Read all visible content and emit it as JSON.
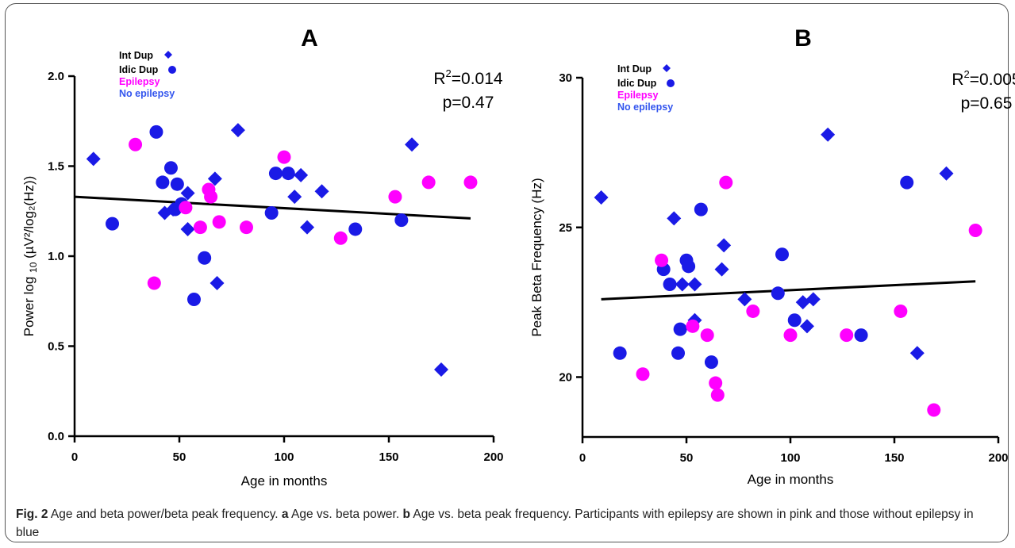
{
  "colors": {
    "int_dup_blue": "#1a1ae6",
    "idic_dup_blue": "#1a1ae6",
    "epilepsy_pink": "#ff00ff",
    "no_epilepsy_blue": "#3355ee",
    "regression_line": "#000000"
  },
  "legend": {
    "int_dup": "Int Dup",
    "idic_dup": "Idic Dup",
    "epilepsy": "Epilepsy",
    "no_epilepsy": "No epilepsy"
  },
  "chart_data": [
    {
      "type": "scatter",
      "panel_label": "A",
      "xlabel": "Age in months",
      "ylabel_main": "Power log",
      "ylabel_sub": "10",
      "ylabel_units": "(µV²/log₂(Hz))",
      "xlim": [
        0,
        200
      ],
      "ylim": [
        0,
        2.0
      ],
      "xticks": [
        "0",
        "50",
        "100",
        "150",
        "200"
      ],
      "yticks": [
        "0.0",
        "0.5",
        "1.0",
        "1.5",
        "2.0"
      ],
      "stats": {
        "r2_label": "R",
        "r2_sup": "2",
        "r2_value": "=0.014",
        "p": "p=0.47"
      },
      "regression": {
        "x": [
          0,
          189
        ],
        "y": [
          1.33,
          1.21
        ]
      },
      "legend_position": "top-left",
      "series": [
        {
          "name": "Int Dup",
          "marker": "diamond",
          "points": [
            [
              9,
              1.54
            ],
            [
              43,
              1.24
            ],
            [
              54,
              1.35
            ],
            [
              54,
              1.15
            ],
            [
              67,
              1.43
            ],
            [
              68,
              0.85
            ],
            [
              78,
              1.7
            ],
            [
              105,
              1.33
            ],
            [
              108,
              1.45
            ],
            [
              111,
              1.16
            ],
            [
              118,
              1.36
            ],
            [
              161,
              1.62
            ],
            [
              175,
              0.37
            ],
            [
              47,
              1.26
            ]
          ]
        },
        {
          "name": "Idic Dup",
          "marker": "circle",
          "points": [
            [
              18,
              1.18
            ],
            [
              39,
              1.69
            ],
            [
              42,
              1.41
            ],
            [
              46,
              1.49
            ],
            [
              48,
              1.26
            ],
            [
              49,
              1.4
            ],
            [
              51,
              1.29
            ],
            [
              62,
              0.99
            ],
            [
              57,
              0.76
            ],
            [
              94,
              1.24
            ],
            [
              96,
              1.46
            ],
            [
              102,
              1.46
            ],
            [
              134,
              1.15
            ],
            [
              156,
              1.2
            ]
          ]
        },
        {
          "name": "Epilepsy",
          "marker": "circle",
          "points": [
            [
              29,
              1.62
            ],
            [
              38,
              0.85
            ],
            [
              53,
              1.27
            ],
            [
              60,
              1.16
            ],
            [
              64,
              1.37
            ],
            [
              65,
              1.33
            ],
            [
              69,
              1.19
            ],
            [
              82,
              1.16
            ],
            [
              100,
              1.55
            ],
            [
              127,
              1.1
            ],
            [
              153,
              1.33
            ],
            [
              169,
              1.41
            ],
            [
              189,
              1.41
            ]
          ]
        }
      ]
    },
    {
      "type": "scatter",
      "panel_label": "B",
      "xlabel": "Age in months",
      "ylabel": "Peak Beta Frequency (Hz)",
      "xlim": [
        0,
        200
      ],
      "ylim": [
        18,
        30
      ],
      "xticks": [
        "0",
        "50",
        "100",
        "150",
        "200"
      ],
      "yticks": [
        "20",
        "25",
        "30"
      ],
      "stats": {
        "r2_label": "R",
        "r2_sup": "2",
        "r2_value": "=0.005",
        "p": "p=0.65"
      },
      "regression": {
        "x": [
          9,
          189
        ],
        "y": [
          22.6,
          23.2
        ]
      },
      "legend_position": "top-left",
      "series": [
        {
          "name": "Int Dup",
          "marker": "diamond",
          "points": [
            [
              9,
              26.0
            ],
            [
              44,
              25.3
            ],
            [
              48,
              23.1
            ],
            [
              54,
              23.1
            ],
            [
              54,
              21.9
            ],
            [
              67,
              23.6
            ],
            [
              68,
              24.4
            ],
            [
              78,
              22.6
            ],
            [
              106,
              22.5
            ],
            [
              108,
              21.7
            ],
            [
              111,
              22.6
            ],
            [
              118,
              28.1
            ],
            [
              161,
              20.8
            ],
            [
              175,
              26.8
            ]
          ]
        },
        {
          "name": "Idic Dup",
          "marker": "circle",
          "points": [
            [
              18,
              20.8
            ],
            [
              39,
              23.6
            ],
            [
              42,
              23.1
            ],
            [
              46,
              20.8
            ],
            [
              47,
              21.6
            ],
            [
              50,
              23.9
            ],
            [
              51,
              23.7
            ],
            [
              57,
              25.6
            ],
            [
              62,
              20.5
            ],
            [
              94,
              22.8
            ],
            [
              96,
              24.1
            ],
            [
              102,
              21.9
            ],
            [
              134,
              21.4
            ],
            [
              156,
              26.5
            ]
          ]
        },
        {
          "name": "Epilepsy",
          "marker": "circle",
          "points": [
            [
              29,
              20.1
            ],
            [
              38,
              23.9
            ],
            [
              53,
              21.7
            ],
            [
              60,
              21.4
            ],
            [
              64,
              19.8
            ],
            [
              65,
              19.4
            ],
            [
              69,
              26.5
            ],
            [
              82,
              22.2
            ],
            [
              100,
              21.4
            ],
            [
              127,
              21.4
            ],
            [
              153,
              22.2
            ],
            [
              169,
              18.9
            ],
            [
              189,
              24.9
            ]
          ]
        }
      ]
    }
  ],
  "caption": {
    "label": "Fig. 2",
    "text1": " Age and beta power/beta peak frequency. ",
    "a": "a",
    "text2": " Age vs. beta power. ",
    "b": "b",
    "text3": " Age vs. beta peak frequency. Participants with epilepsy are shown in pink and those without epilepsy in blue"
  }
}
